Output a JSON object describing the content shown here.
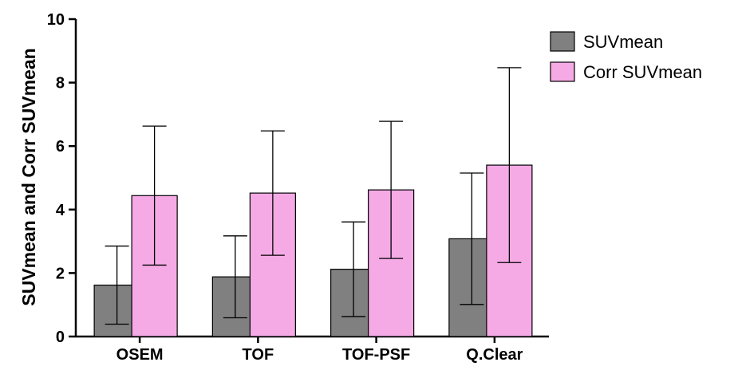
{
  "chart_data": {
    "type": "bar",
    "title": "",
    "xlabel": "",
    "ylabel": "SUVmean and Corr SUVmean",
    "ylim": [
      0,
      10
    ],
    "yticks": [
      0,
      2,
      4,
      6,
      8,
      10
    ],
    "grid": false,
    "legend_position": "top-right",
    "categories": [
      "OSEM",
      "TOF",
      "TOF-PSF",
      "Q.Clear"
    ],
    "series": [
      {
        "name": "SUVmean",
        "color": "#808080",
        "values": [
          1.62,
          1.88,
          2.12,
          3.08
        ],
        "error": [
          1.23,
          1.29,
          1.49,
          2.07
        ]
      },
      {
        "name": "Corr SUVmean",
        "color": "#f5aae6",
        "values": [
          4.44,
          4.52,
          4.62,
          5.4
        ],
        "error": [
          2.19,
          1.96,
          2.16,
          3.07
        ]
      }
    ]
  }
}
